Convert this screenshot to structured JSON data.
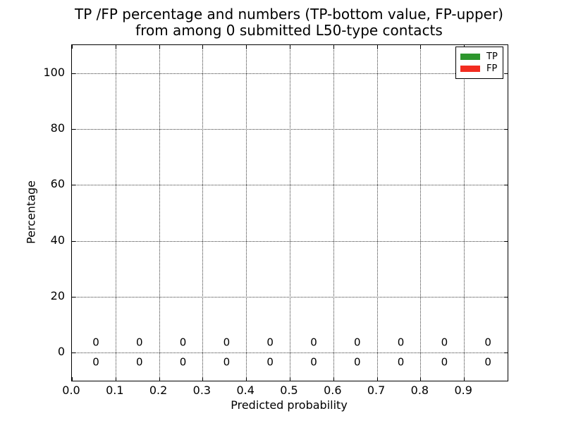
{
  "chart_data": {
    "type": "bar",
    "title_line1": "TP /FP percentage and numbers (TP-bottom value, FP-upper)",
    "title_line2": "from among 0 submitted L50-type contacts",
    "xlabel": "Predicted probability",
    "ylabel": "Percentage",
    "xlim": [
      0.0,
      1.0
    ],
    "ylim": [
      -10,
      110
    ],
    "x_ticks": [
      0.0,
      0.1,
      0.2,
      0.3,
      0.4,
      0.5,
      0.6,
      0.7,
      0.8,
      0.9
    ],
    "x_tick_labels": [
      "0.0",
      "0.1",
      "0.2",
      "0.3",
      "0.4",
      "0.5",
      "0.6",
      "0.7",
      "0.8",
      "0.9"
    ],
    "y_ticks": [
      0,
      20,
      40,
      60,
      80,
      100
    ],
    "y_tick_labels": [
      "0",
      "20",
      "40",
      "60",
      "80",
      "100"
    ],
    "grid": "dotted",
    "legend_position": "upper right",
    "bin_label_x": [
      0.055,
      0.155,
      0.255,
      0.355,
      0.455,
      0.555,
      0.655,
      0.755,
      0.855,
      0.955
    ],
    "series": [
      {
        "name": "TP",
        "color": "#2D962D",
        "values": [
          0,
          0,
          0,
          0,
          0,
          0,
          0,
          0,
          0,
          0
        ],
        "value_labels": [
          "0",
          "0",
          "0",
          "0",
          "0",
          "0",
          "0",
          "0",
          "0",
          "0"
        ],
        "label_row": "bottom",
        "label_y": -3.5
      },
      {
        "name": "FP",
        "color": "#F22C20",
        "values": [
          0,
          0,
          0,
          0,
          0,
          0,
          0,
          0,
          0,
          0
        ],
        "value_labels": [
          "0",
          "0",
          "0",
          "0",
          "0",
          "0",
          "0",
          "0",
          "0",
          "0"
        ],
        "label_row": "upper",
        "label_y": 3.5
      }
    ]
  }
}
